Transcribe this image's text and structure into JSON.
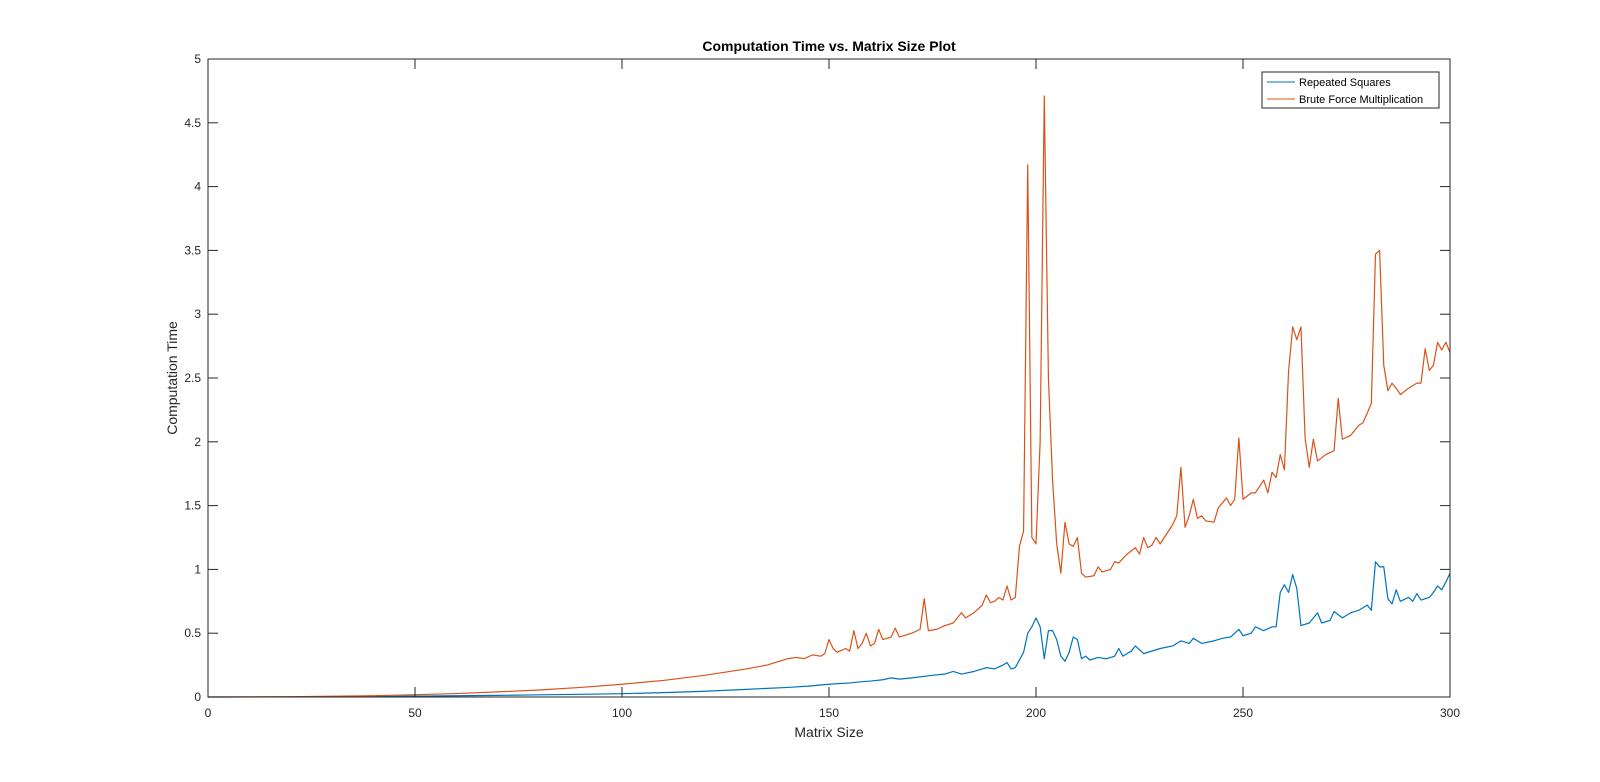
{
  "chart_data": {
    "type": "line",
    "title": "Computation Time vs. Matrix Size Plot",
    "xlabel": "Matrix Size",
    "ylabel": "Computation Time",
    "xlim": [
      0,
      300
    ],
    "ylim": [
      0,
      5
    ],
    "xticks": [
      0,
      50,
      100,
      150,
      200,
      250,
      300
    ],
    "yticks": [
      0,
      0.5,
      1,
      1.5,
      2,
      2.5,
      3,
      3.5,
      4,
      4.5,
      5
    ],
    "ytick_labels": [
      "0",
      "0.5",
      "1",
      "1.5",
      "2",
      "2.5",
      "3",
      "3.5",
      "4",
      "4.5",
      "5"
    ],
    "grid": false,
    "legend_position": "top-right",
    "series": [
      {
        "name": "Repeated Squares",
        "color": "#0072BD",
        "points": [
          [
            0,
            0
          ],
          [
            20,
            0.001
          ],
          [
            40,
            0.004
          ],
          [
            50,
            0.007
          ],
          [
            60,
            0.01
          ],
          [
            70,
            0.013
          ],
          [
            80,
            0.017
          ],
          [
            90,
            0.021
          ],
          [
            100,
            0.026
          ],
          [
            110,
            0.034
          ],
          [
            120,
            0.045
          ],
          [
            130,
            0.06
          ],
          [
            140,
            0.075
          ],
          [
            145,
            0.085
          ],
          [
            150,
            0.1
          ],
          [
            155,
            0.11
          ],
          [
            158,
            0.12
          ],
          [
            160,
            0.125
          ],
          [
            163,
            0.135
          ],
          [
            165,
            0.15
          ],
          [
            167,
            0.14
          ],
          [
            170,
            0.15
          ],
          [
            175,
            0.17
          ],
          [
            178,
            0.18
          ],
          [
            180,
            0.2
          ],
          [
            182,
            0.18
          ],
          [
            185,
            0.2
          ],
          [
            188,
            0.23
          ],
          [
            190,
            0.22
          ],
          [
            192,
            0.25
          ],
          [
            193,
            0.27
          ],
          [
            194,
            0.22
          ],
          [
            195,
            0.23
          ],
          [
            197,
            0.35
          ],
          [
            198,
            0.5
          ],
          [
            199,
            0.55
          ],
          [
            200,
            0.62
          ],
          [
            201,
            0.55
          ],
          [
            202,
            0.3
          ],
          [
            203,
            0.52
          ],
          [
            204,
            0.52
          ],
          [
            205,
            0.45
          ],
          [
            206,
            0.32
          ],
          [
            207,
            0.28
          ],
          [
            208,
            0.35
          ],
          [
            209,
            0.47
          ],
          [
            210,
            0.45
          ],
          [
            211,
            0.3
          ],
          [
            212,
            0.32
          ],
          [
            213,
            0.29
          ],
          [
            215,
            0.31
          ],
          [
            217,
            0.3
          ],
          [
            219,
            0.32
          ],
          [
            220,
            0.38
          ],
          [
            221,
            0.32
          ],
          [
            223,
            0.36
          ],
          [
            224,
            0.4
          ],
          [
            226,
            0.34
          ],
          [
            230,
            0.38
          ],
          [
            233,
            0.4
          ],
          [
            235,
            0.44
          ],
          [
            237,
            0.42
          ],
          [
            238,
            0.46
          ],
          [
            240,
            0.42
          ],
          [
            243,
            0.44
          ],
          [
            245,
            0.46
          ],
          [
            247,
            0.47
          ],
          [
            248,
            0.5
          ],
          [
            249,
            0.53
          ],
          [
            250,
            0.48
          ],
          [
            252,
            0.5
          ],
          [
            253,
            0.55
          ],
          [
            255,
            0.52
          ],
          [
            257,
            0.55
          ],
          [
            258,
            0.55
          ],
          [
            259,
            0.82
          ],
          [
            260,
            0.88
          ],
          [
            261,
            0.82
          ],
          [
            262,
            0.96
          ],
          [
            263,
            0.85
          ],
          [
            264,
            0.56
          ],
          [
            266,
            0.58
          ],
          [
            268,
            0.66
          ],
          [
            269,
            0.58
          ],
          [
            271,
            0.6
          ],
          [
            272,
            0.67
          ],
          [
            274,
            0.62
          ],
          [
            276,
            0.66
          ],
          [
            278,
            0.68
          ],
          [
            280,
            0.72
          ],
          [
            281,
            0.68
          ],
          [
            282,
            1.06
          ],
          [
            283,
            1.02
          ],
          [
            284,
            1.02
          ],
          [
            285,
            0.77
          ],
          [
            286,
            0.73
          ],
          [
            287,
            0.84
          ],
          [
            288,
            0.75
          ],
          [
            290,
            0.78
          ],
          [
            291,
            0.75
          ],
          [
            292,
            0.81
          ],
          [
            293,
            0.76
          ],
          [
            295,
            0.78
          ],
          [
            296,
            0.82
          ],
          [
            297,
            0.87
          ],
          [
            298,
            0.84
          ],
          [
            299,
            0.9
          ],
          [
            300,
            0.97
          ]
        ]
      },
      {
        "name": "Brute Force Multiplication",
        "color": "#D95319",
        "points": [
          [
            0,
            0
          ],
          [
            20,
            0.002
          ],
          [
            40,
            0.01
          ],
          [
            50,
            0.018
          ],
          [
            60,
            0.027
          ],
          [
            70,
            0.04
          ],
          [
            80,
            0.055
          ],
          [
            90,
            0.075
          ],
          [
            100,
            0.1
          ],
          [
            110,
            0.13
          ],
          [
            120,
            0.17
          ],
          [
            130,
            0.22
          ],
          [
            135,
            0.25
          ],
          [
            138,
            0.28
          ],
          [
            140,
            0.3
          ],
          [
            142,
            0.31
          ],
          [
            144,
            0.3
          ],
          [
            146,
            0.33
          ],
          [
            148,
            0.32
          ],
          [
            149,
            0.34
          ],
          [
            150,
            0.45
          ],
          [
            151,
            0.38
          ],
          [
            152,
            0.35
          ],
          [
            154,
            0.38
          ],
          [
            155,
            0.36
          ],
          [
            156,
            0.52
          ],
          [
            157,
            0.38
          ],
          [
            158,
            0.42
          ],
          [
            159,
            0.5
          ],
          [
            160,
            0.4
          ],
          [
            161,
            0.42
          ],
          [
            162,
            0.53
          ],
          [
            163,
            0.45
          ],
          [
            165,
            0.47
          ],
          [
            166,
            0.54
          ],
          [
            167,
            0.47
          ],
          [
            170,
            0.5
          ],
          [
            172,
            0.53
          ],
          [
            173,
            0.77
          ],
          [
            174,
            0.52
          ],
          [
            176,
            0.53
          ],
          [
            178,
            0.56
          ],
          [
            180,
            0.58
          ],
          [
            182,
            0.66
          ],
          [
            183,
            0.62
          ],
          [
            185,
            0.66
          ],
          [
            187,
            0.72
          ],
          [
            188,
            0.8
          ],
          [
            189,
            0.74
          ],
          [
            190,
            0.75
          ],
          [
            191,
            0.78
          ],
          [
            192,
            0.76
          ],
          [
            193,
            0.87
          ],
          [
            194,
            0.76
          ],
          [
            195,
            0.78
          ],
          [
            196,
            1.18
          ],
          [
            197,
            1.3
          ],
          [
            198,
            4.17
          ],
          [
            199,
            1.25
          ],
          [
            200,
            1.2
          ],
          [
            201,
            2.0
          ],
          [
            202,
            4.71
          ],
          [
            203,
            2.5
          ],
          [
            204,
            1.7
          ],
          [
            205,
            1.2
          ],
          [
            206,
            0.97
          ],
          [
            207,
            1.37
          ],
          [
            208,
            1.2
          ],
          [
            209,
            1.18
          ],
          [
            210,
            1.25
          ],
          [
            211,
            0.97
          ],
          [
            212,
            0.94
          ],
          [
            214,
            0.95
          ],
          [
            215,
            1.02
          ],
          [
            216,
            0.98
          ],
          [
            218,
            1.0
          ],
          [
            219,
            1.06
          ],
          [
            220,
            1.05
          ],
          [
            222,
            1.12
          ],
          [
            224,
            1.17
          ],
          [
            225,
            1.12
          ],
          [
            226,
            1.25
          ],
          [
            227,
            1.17
          ],
          [
            228,
            1.19
          ],
          [
            229,
            1.25
          ],
          [
            230,
            1.2
          ],
          [
            232,
            1.3
          ],
          [
            233,
            1.35
          ],
          [
            234,
            1.42
          ],
          [
            235,
            1.8
          ],
          [
            236,
            1.33
          ],
          [
            237,
            1.42
          ],
          [
            238,
            1.55
          ],
          [
            239,
            1.4
          ],
          [
            240,
            1.42
          ],
          [
            241,
            1.38
          ],
          [
            243,
            1.37
          ],
          [
            244,
            1.48
          ],
          [
            246,
            1.56
          ],
          [
            247,
            1.5
          ],
          [
            248,
            1.55
          ],
          [
            249,
            2.03
          ],
          [
            250,
            1.55
          ],
          [
            252,
            1.6
          ],
          [
            253,
            1.6
          ],
          [
            255,
            1.7
          ],
          [
            256,
            1.6
          ],
          [
            257,
            1.76
          ],
          [
            258,
            1.72
          ],
          [
            259,
            1.9
          ],
          [
            260,
            1.78
          ],
          [
            261,
            2.55
          ],
          [
            262,
            2.9
          ],
          [
            263,
            2.8
          ],
          [
            264,
            2.9
          ],
          [
            265,
            2.03
          ],
          [
            266,
            1.8
          ],
          [
            267,
            2.02
          ],
          [
            268,
            1.85
          ],
          [
            270,
            1.9
          ],
          [
            272,
            1.93
          ],
          [
            273,
            2.34
          ],
          [
            274,
            2.02
          ],
          [
            276,
            2.05
          ],
          [
            278,
            2.13
          ],
          [
            279,
            2.15
          ],
          [
            281,
            2.3
          ],
          [
            282,
            3.47
          ],
          [
            283,
            3.5
          ],
          [
            284,
            2.6
          ],
          [
            285,
            2.4
          ],
          [
            286,
            2.46
          ],
          [
            287,
            2.42
          ],
          [
            288,
            2.37
          ],
          [
            290,
            2.42
          ],
          [
            292,
            2.46
          ],
          [
            293,
            2.46
          ],
          [
            294,
            2.73
          ],
          [
            295,
            2.56
          ],
          [
            296,
            2.6
          ],
          [
            297,
            2.78
          ],
          [
            298,
            2.72
          ],
          [
            299,
            2.78
          ],
          [
            300,
            2.7
          ]
        ]
      }
    ]
  }
}
